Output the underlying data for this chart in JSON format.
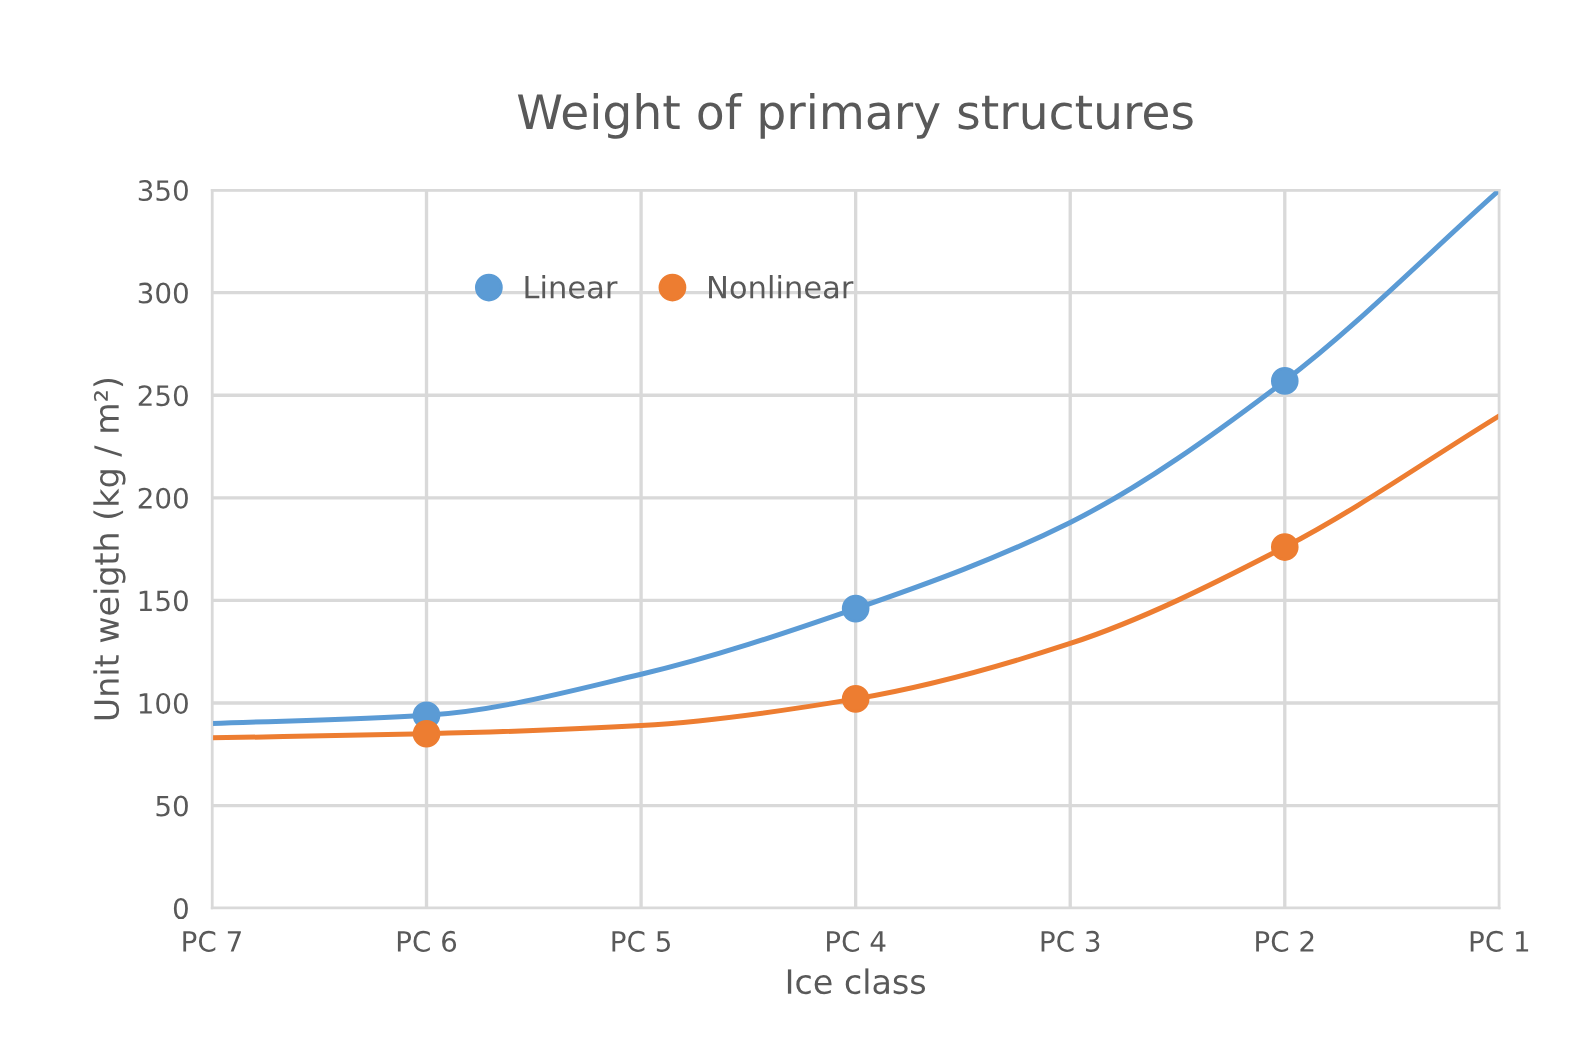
{
  "chart_data": {
    "type": "line",
    "title": "Weight of primary structures",
    "xlabel": "Ice class",
    "ylabel": "Unit weigth (kg / m²)",
    "categories": [
      "PC 7",
      "PC 6",
      "PC 5",
      "PC 4",
      "PC 3",
      "PC 2",
      "PC 1"
    ],
    "series": [
      {
        "color": "#5b9bd5",
        "values": [
          90,
          94,
          114,
          146,
          188,
          257,
          350
        ],
        "marker": "none",
        "line_style": "solid"
      },
      {
        "color": "#ed7d31",
        "values": [
          83,
          85,
          89,
          102,
          129,
          176,
          240
        ],
        "marker": "none",
        "line_style": "solid"
      },
      {
        "type": "scatter",
        "name": "Linear",
        "color": "#5b9bd5",
        "values": [
          null,
          94,
          null,
          146,
          null,
          257,
          null
        ],
        "marker": "circle"
      },
      {
        "type": "scatter",
        "name": "Nonlinear",
        "color": "#ed7d31",
        "values": [
          null,
          85,
          null,
          102,
          null,
          176,
          null
        ],
        "marker": "circle"
      }
    ],
    "ylim": [
      0,
      350
    ],
    "yticks": [
      0,
      50,
      100,
      150,
      200,
      250,
      300,
      350
    ],
    "grid": true,
    "legend": "top left"
  }
}
